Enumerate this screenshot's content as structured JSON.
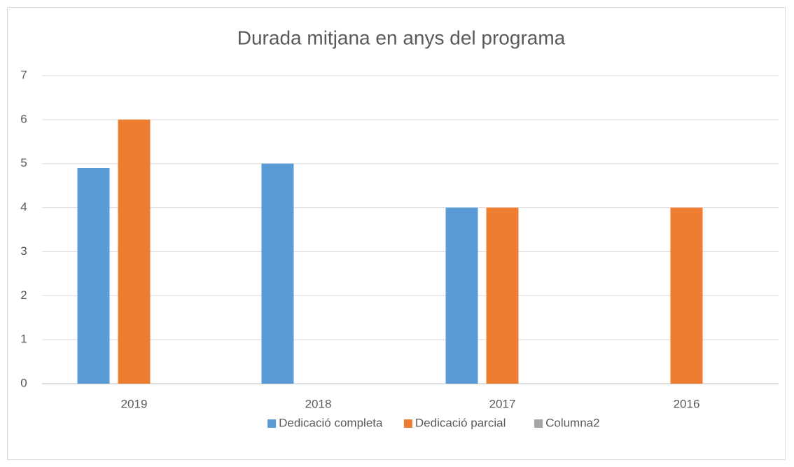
{
  "chart_data": {
    "type": "bar",
    "title": "Durada mitjana en anys del programa",
    "categories": [
      "2019",
      "2018",
      "2017",
      "2016"
    ],
    "series": [
      {
        "name": "Dedicació completa",
        "color": "#5b9bd5",
        "values": [
          4.9,
          5,
          4,
          null
        ]
      },
      {
        "name": "Dedicació parcial",
        "color": "#ed7d31",
        "values": [
          6,
          null,
          4,
          4
        ]
      },
      {
        "name": "Columna2",
        "color": "#a5a5a5",
        "values": [
          null,
          null,
          null,
          null
        ]
      }
    ],
    "ylim": [
      0,
      7
    ],
    "yticks": [
      0,
      1,
      2,
      3,
      4,
      5,
      6,
      7
    ],
    "grid": true,
    "legend": "bottom"
  }
}
